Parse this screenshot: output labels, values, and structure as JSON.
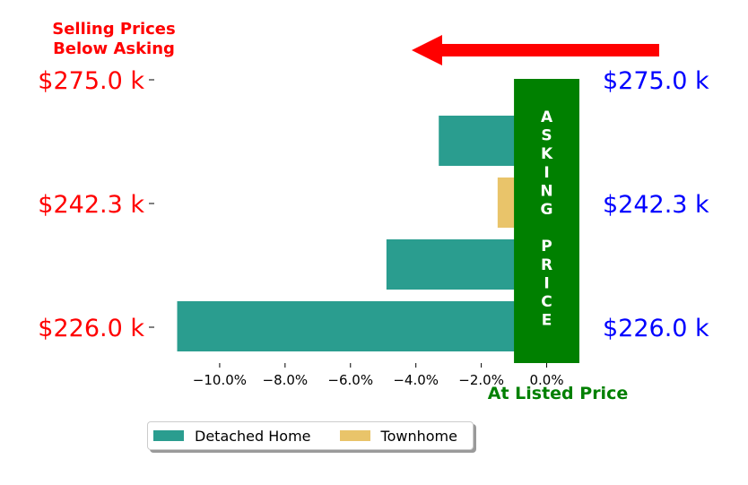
{
  "chart_data": {
    "type": "bar",
    "orientation": "horizontal",
    "bar_order": "top-to-bottom",
    "series": [
      {
        "name": "Detached Home",
        "color": "#2a9d8f",
        "values": [
          -3.3,
          null,
          -4.9,
          -11.3
        ]
      },
      {
        "name": "Townhome",
        "color": "#e9c46a",
        "values": [
          null,
          -1.5,
          null,
          null
        ]
      }
    ],
    "x_ticks": [
      "−10.0%",
      "−8.0%",
      "−6.0%",
      "−4.0%",
      "−2.0%",
      "0.0%"
    ],
    "x_tick_values": [
      -10,
      -8,
      -6,
      -4,
      -2,
      0
    ],
    "xlim": [
      -12,
      1
    ],
    "y_ticks_left": [
      "$275.0 k",
      "$242.3 k",
      "$226.0 k"
    ],
    "y_ticks_right": [
      "$275.0 k",
      "$242.3 k",
      "$226.0 k"
    ],
    "left_tick_color": "#ff0000",
    "right_tick_color": "#0000ff",
    "asking_price_band": {
      "label": "ASKING PRICE",
      "x_from": -1,
      "x_to": 1,
      "color": "#008000"
    },
    "annotations": {
      "below_asking": "Selling Prices\nBelow Asking",
      "below_asking_color": "#ff0000",
      "at_listed": "At Listed Price",
      "at_listed_color": "#008000",
      "arrow_color": "#ff0000"
    },
    "legend": {
      "placement": "bottom-left"
    },
    "grid": false
  }
}
